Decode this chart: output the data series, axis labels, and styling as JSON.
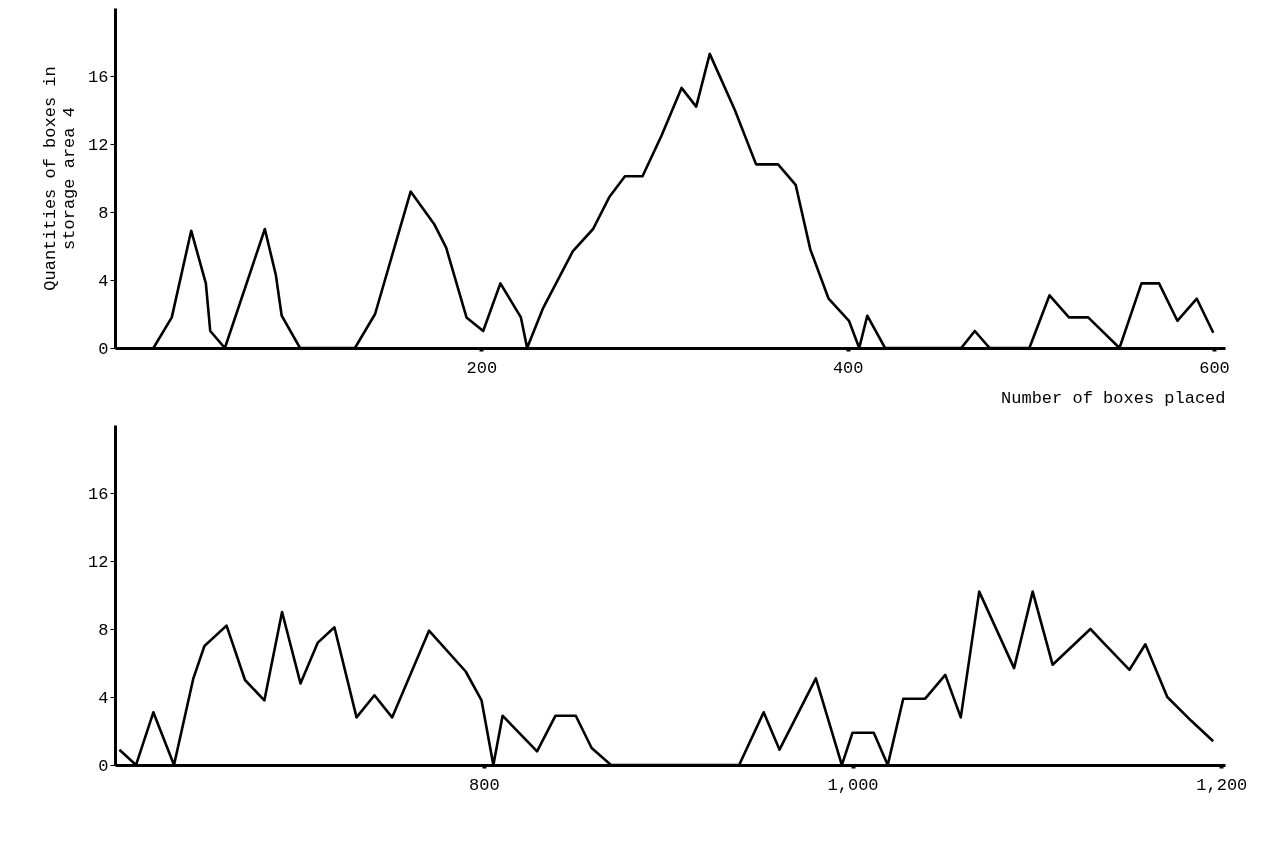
{
  "chart_data": [
    {
      "type": "line",
      "xlabel": "Number of boxes placed",
      "ylabel": "Quantities of boxes in\nstorage area 4",
      "xlim": [
        0,
        606
      ],
      "ylim": [
        0,
        20
      ],
      "xticks": [
        200,
        400,
        600
      ],
      "yticks": [
        0,
        4,
        8,
        12,
        16
      ],
      "grid": false,
      "marker": "none",
      "line_style": "solid",
      "x": [
        21,
        31,
        41.6,
        49.6,
        52,
        60,
        81.8,
        87.8,
        91,
        101,
        131,
        142,
        161.4,
        174.2,
        180.8,
        191.9,
        201,
        210.4,
        221.6,
        225,
        233.5,
        250,
        261,
        270,
        278.4,
        288,
        298.4,
        309.3,
        317.3,
        324.7,
        338.4,
        350,
        362,
        371.6,
        379.6,
        389.6,
        400.7,
        406.3,
        410.7,
        420.4,
        462,
        469.4,
        477.5,
        499.2,
        510.2,
        520.8,
        531.3,
        548.4,
        560.4,
        570,
        580,
        590.6,
        599.6
      ],
      "series": [
        {
          "color": "#000000",
          "values": [
            0,
            1.8,
            6.9,
            3.8,
            1.0,
            0,
            7.0,
            4.3,
            1.9,
            0,
            0,
            2.0,
            9.2,
            7.3,
            5.9,
            1.8,
            1.0,
            3.8,
            1.8,
            0,
            2.3,
            5.7,
            7.0,
            8.9,
            10.1,
            10.1,
            12.5,
            15.3,
            14.2,
            17.3,
            14.0,
            10.8,
            10.8,
            9.6,
            5.8,
            2.9,
            1.6,
            0,
            1.9,
            0,
            0,
            1.0,
            0,
            0,
            3.1,
            1.8,
            1.8,
            0,
            3.8,
            3.8,
            1.6,
            2.9,
            0.9
          ]
        }
      ]
    },
    {
      "type": "line",
      "xlim": [
        600,
        1202
      ],
      "ylim": [
        0,
        20
      ],
      "xticks": [
        800,
        {
          "value": 1000,
          "label": "1,000"
        },
        {
          "value": 1200,
          "label": "1,200"
        }
      ],
      "yticks": [
        0,
        4,
        8,
        12,
        16
      ],
      "grid": false,
      "marker": "none",
      "line_style": "solid",
      "x": [
        602.4,
        611.4,
        620.8,
        632,
        642.5,
        648.5,
        660.5,
        670.5,
        681,
        690.6,
        700.6,
        710,
        719,
        731,
        740.7,
        750.3,
        770.3,
        790.2,
        798.8,
        805.2,
        810.2,
        828.9,
        838.9,
        849.9,
        858.5,
        869,
        938.5,
        951.8,
        960.4,
        980.1,
        994.2,
        1000,
        1011.5,
        1019.1,
        1027.5,
        1039.4,
        1050.3,
        1058.7,
        1068.7,
        1087.6,
        1097.7,
        1108.5,
        1129,
        1136.9,
        1150.2,
        1158.8,
        1170.7,
        1183.7,
        1195.6
      ],
      "series": [
        {
          "color": "#000000",
          "values": [
            0.9,
            0,
            3.1,
            0,
            5.1,
            7.0,
            8.2,
            5.0,
            3.8,
            9.0,
            4.8,
            7.2,
            8.1,
            2.8,
            4.1,
            2.8,
            7.9,
            5.5,
            3.8,
            0,
            2.9,
            0.8,
            2.9,
            2.9,
            1.0,
            0,
            0,
            3.1,
            0.9,
            5.1,
            0,
            1.9,
            1.9,
            0,
            3.9,
            3.9,
            5.3,
            2.8,
            10.2,
            5.7,
            10.2,
            5.9,
            8.0,
            7.1,
            5.6,
            7.1,
            4.0,
            2.6,
            1.4
          ]
        }
      ]
    }
  ]
}
